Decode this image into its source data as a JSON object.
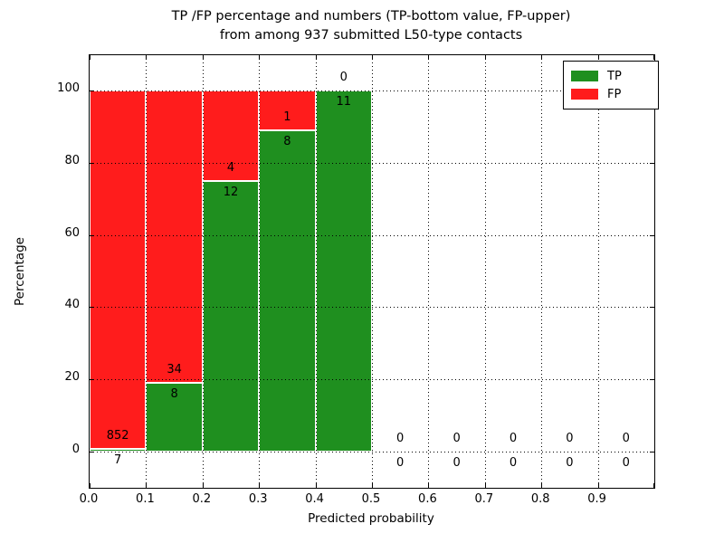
{
  "figure": {
    "title_line1": "TP /FP percentage and numbers (TP-bottom value, FP-upper)",
    "title_line2": "from among 937 submitted L50-type contacts"
  },
  "chart_data": {
    "type": "bar",
    "subtype": "stacked-percentage-histogram",
    "title": "TP /FP percentage and numbers (TP-bottom value, FP-upper) from among 937 submitted L50-type contacts",
    "xlabel": "Predicted probability",
    "ylabel": "Percentage",
    "xlim": [
      0.0,
      1.0
    ],
    "ylim": [
      -10,
      110
    ],
    "grid": "dotted",
    "x_ticks": [
      "0.0",
      "0.1",
      "0.2",
      "0.3",
      "0.4",
      "0.5",
      "0.6",
      "0.7",
      "0.8",
      "0.9"
    ],
    "y_ticks": [
      0,
      20,
      40,
      60,
      80,
      100
    ],
    "total_contacts": 937,
    "categories": [
      "0.0-0.1",
      "0.1-0.2",
      "0.2-0.3",
      "0.3-0.4",
      "0.4-0.5",
      "0.5-0.6",
      "0.6-0.7",
      "0.7-0.8",
      "0.8-0.9",
      "0.9-1.0"
    ],
    "series": [
      {
        "name": "TP",
        "color": "#1f8f1f",
        "values": [
          7,
          8,
          12,
          8,
          11,
          0,
          0,
          0,
          0,
          0
        ]
      },
      {
        "name": "FP",
        "color": "#ff1c1c",
        "values": [
          852,
          34,
          4,
          1,
          0,
          0,
          0,
          0,
          0,
          0
        ]
      }
    ],
    "tp_percentages": [
      0.81,
      19.05,
      75.0,
      88.89,
      100.0,
      0,
      0,
      0,
      0,
      0
    ],
    "legend": [
      {
        "label": "TP",
        "color": "#1f8f1f"
      },
      {
        "label": "FP",
        "color": "#ff1c1c"
      }
    ],
    "legend_position": "upper right"
  }
}
